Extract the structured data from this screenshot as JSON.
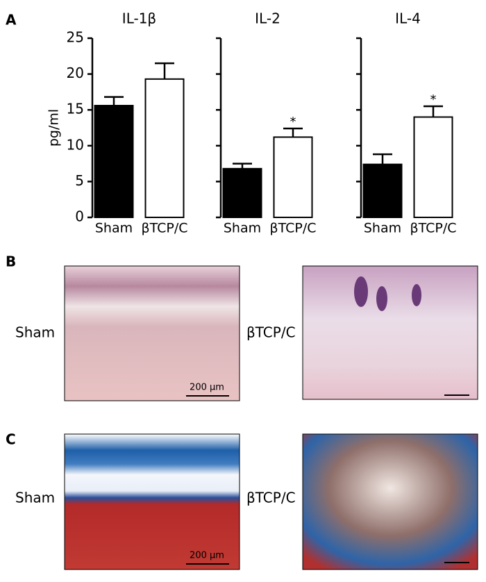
{
  "chart_data": [
    {
      "type": "bar",
      "title": "IL-1β",
      "ylabel": "pg/ml",
      "categories": [
        "Sham",
        "βTCP/C"
      ],
      "values": [
        15.6,
        19.3
      ],
      "errors": [
        1.2,
        2.2
      ],
      "colors": [
        "#000000",
        "#ffffff"
      ],
      "ylim": [
        0,
        25
      ],
      "yticks": [
        0,
        5,
        10,
        15,
        20,
        25
      ],
      "ytick_labels": true
    },
    {
      "type": "bar",
      "title": "IL-2",
      "categories": [
        "Sham",
        "βTCP/C"
      ],
      "values": [
        6.8,
        11.2
      ],
      "errors": [
        0.7,
        1.2
      ],
      "colors": [
        "#000000",
        "#ffffff"
      ],
      "ylim": [
        0,
        25
      ],
      "yticks": [
        0,
        5,
        10,
        15,
        20,
        25
      ],
      "ytick_labels": false,
      "annotations": [
        {
          "text": "*",
          "x": "βTCP/C"
        }
      ]
    },
    {
      "type": "bar",
      "title": "IL-4",
      "categories": [
        "Sham",
        "βTCP/C"
      ],
      "values": [
        7.4,
        14.0
      ],
      "errors": [
        1.4,
        1.5
      ],
      "colors": [
        "#000000",
        "#ffffff"
      ],
      "ylim": [
        0,
        25
      ],
      "yticks": [
        0,
        5,
        10,
        15,
        20,
        25
      ],
      "ytick_labels": false,
      "annotations": [
        {
          "text": "*",
          "x": "βTCP/C"
        }
      ]
    }
  ],
  "panels": {
    "a": "A",
    "b": "B",
    "c": "C"
  },
  "histology": {
    "left_label": "Sham",
    "right_label": "βTCP/C",
    "scale": "200 μm"
  }
}
